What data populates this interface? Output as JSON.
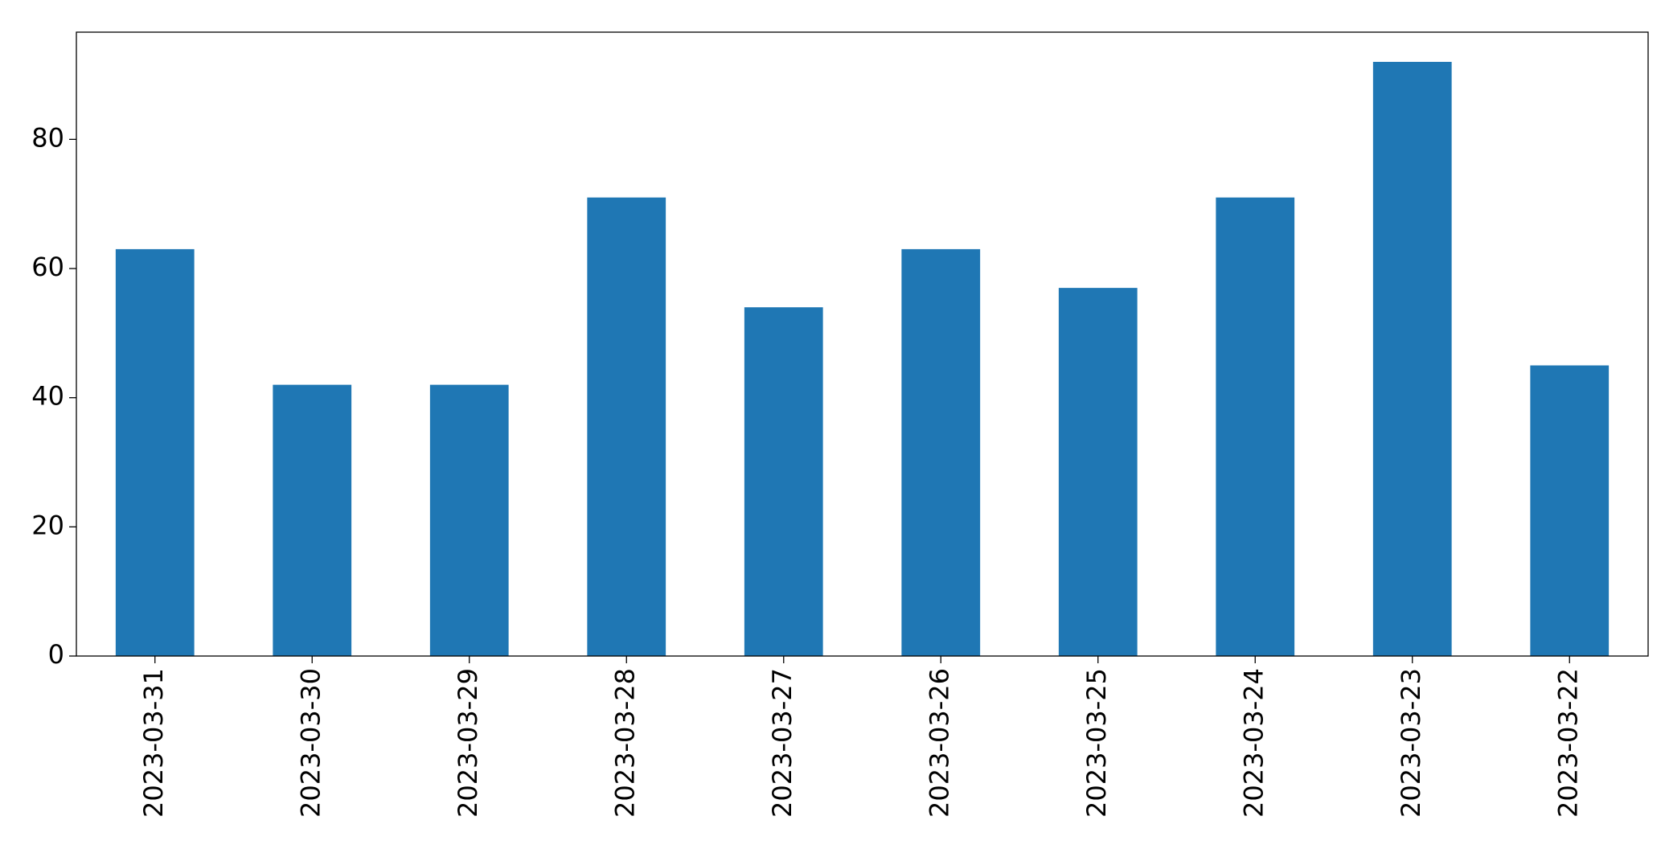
{
  "chart_data": {
    "type": "bar",
    "categories": [
      "2023-03-31",
      "2023-03-30",
      "2023-03-29",
      "2023-03-28",
      "2023-03-27",
      "2023-03-26",
      "2023-03-25",
      "2023-03-24",
      "2023-03-23",
      "2023-03-22"
    ],
    "values": [
      63,
      42,
      42,
      71,
      54,
      63,
      57,
      71,
      92,
      45
    ],
    "color": "#1f77b4",
    "ylim": [
      0,
      96.6
    ],
    "yticks": [
      0,
      20,
      40,
      60,
      80
    ],
    "grid": false
  }
}
